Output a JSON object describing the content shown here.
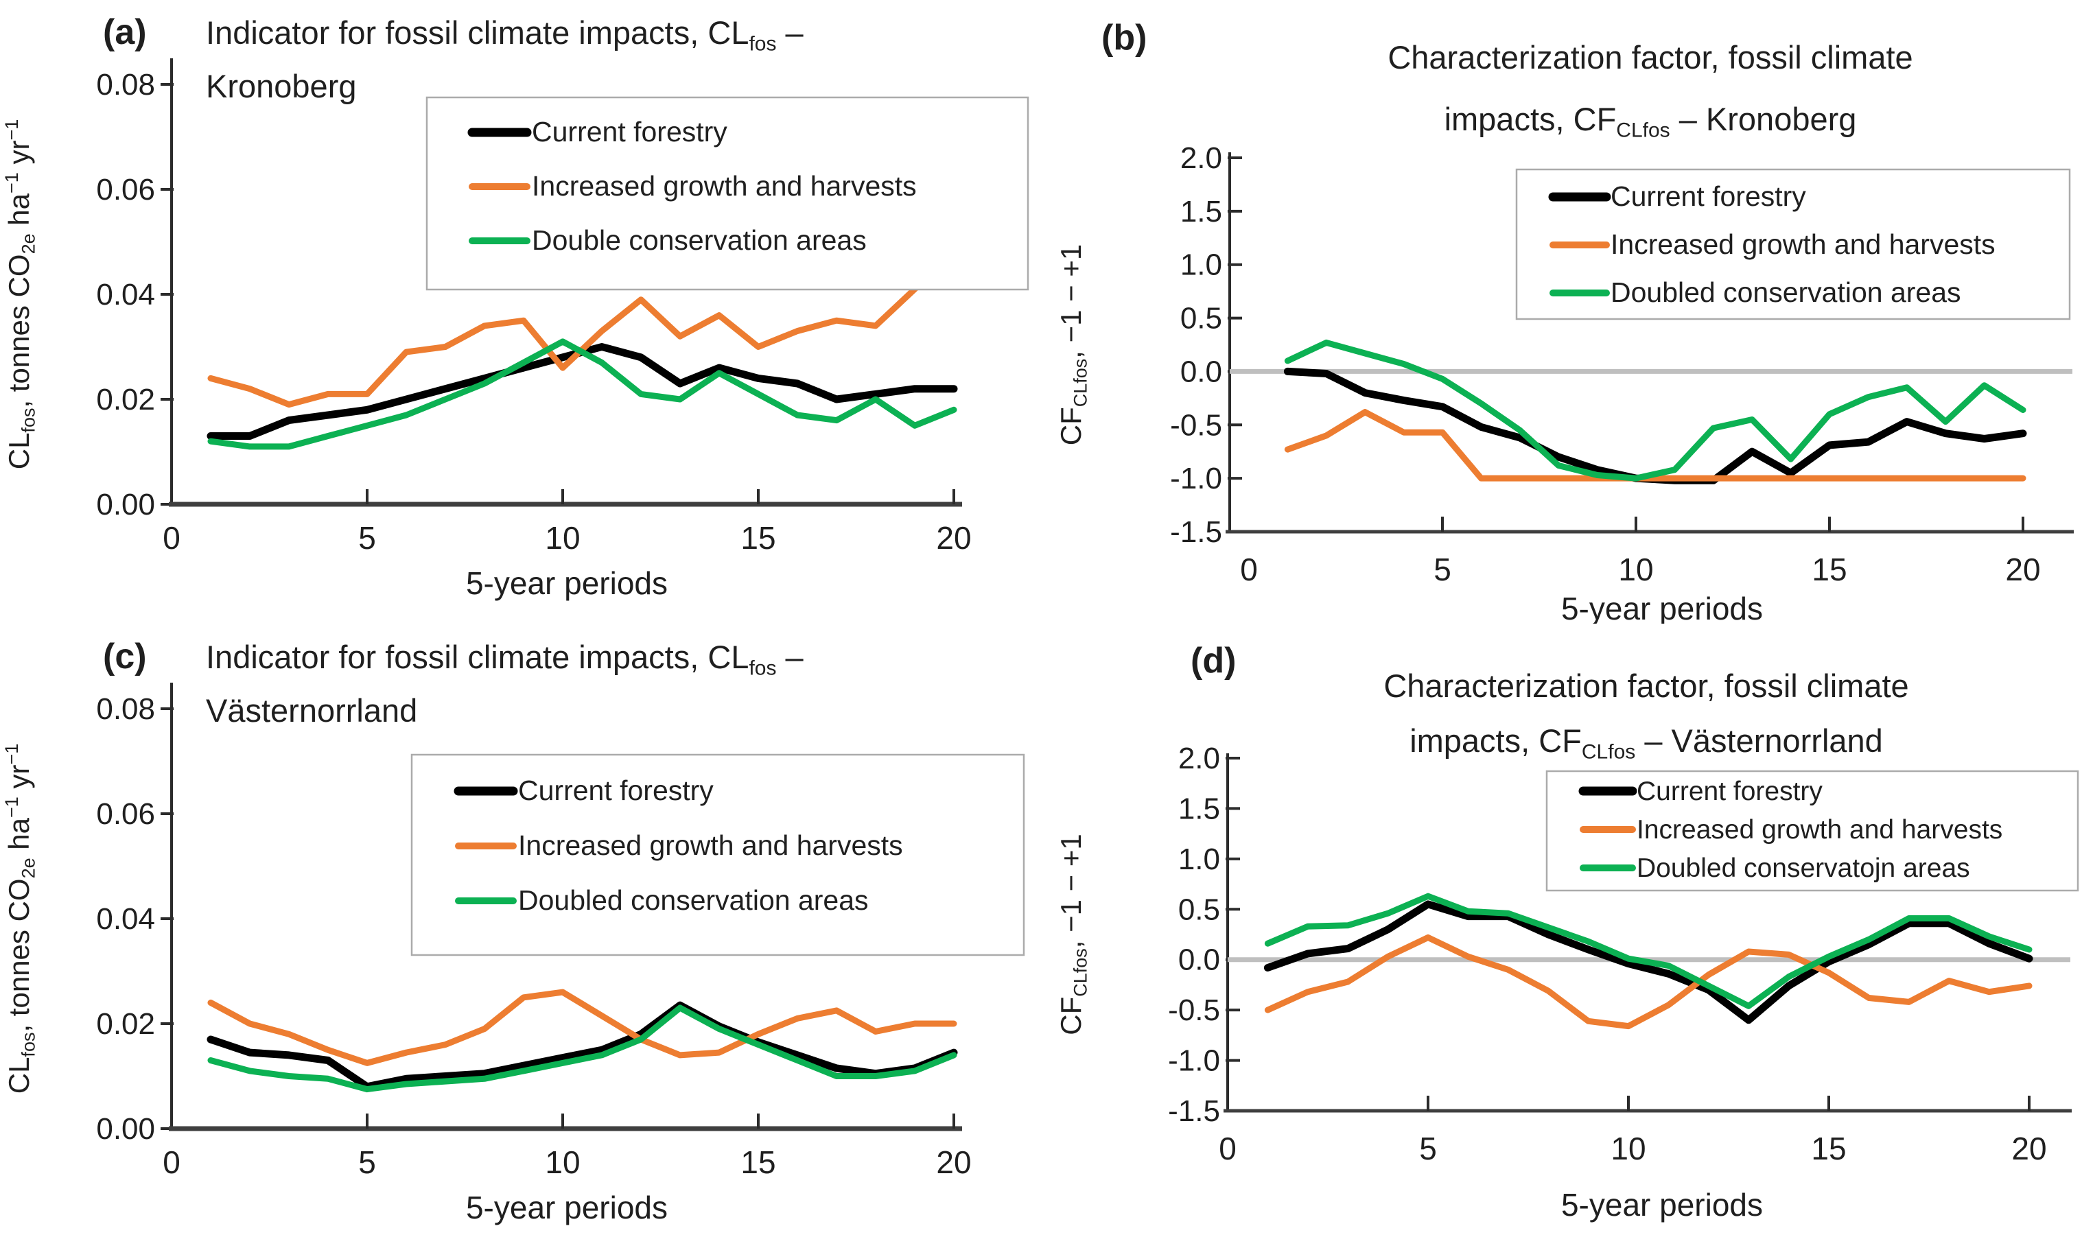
{
  "figure": {
    "background": "#FFFFFF",
    "xlabel": "5-year periods"
  },
  "colors": {
    "current": "#000000",
    "increased": "#ED7D31",
    "doubled": "#0CB153",
    "zero_line": "#BFBFBF",
    "axis": "#2B2B2B",
    "bottom_axis": "#3F3F3F",
    "text": "#1F1F1F",
    "legend_border": "#ABABAB"
  },
  "chart_data": [
    {
      "id": "a",
      "type": "line",
      "panel_label": "(a)",
      "title_lines": [
        [
          {
            "t": "Indicator for fossil climate impacts, CL"
          },
          {
            "t": "fos",
            "script": "sub"
          },
          {
            "t": " –"
          }
        ],
        [
          {
            "t": "Kronoberg"
          }
        ]
      ],
      "title_align": "left",
      "ylabel_runs": [
        {
          "t": "CL"
        },
        {
          "t": "fos",
          "script": "sub"
        },
        {
          "t": ", tonnes CO"
        },
        {
          "t": "2e",
          "script": "sub"
        },
        {
          "t": " ha"
        },
        {
          "t": "−1",
          "script": "sup"
        },
        {
          "t": " yr"
        },
        {
          "t": "−1",
          "script": "sup"
        }
      ],
      "xlabel": "5-year periods",
      "xlim": [
        0,
        21
      ],
      "xticks": [
        0,
        5,
        10,
        15,
        20
      ],
      "xtick_labels": [
        "0",
        "5",
        "10",
        "15",
        "20"
      ],
      "ylim": [
        0,
        0.08
      ],
      "yticks": [
        0,
        0.02,
        0.04,
        0.06,
        0.08
      ],
      "ytick_labels": [
        "0.00",
        "0.02",
        "0.04",
        "0.06",
        "0.08"
      ],
      "zero_line": false,
      "grid": false,
      "legend_position": "upper-right",
      "x": [
        1,
        2,
        3,
        4,
        5,
        6,
        7,
        8,
        9,
        10,
        11,
        12,
        13,
        14,
        15,
        16,
        17,
        18,
        19,
        20
      ],
      "series": [
        {
          "name": "Current forestry",
          "color_key": "current",
          "values": [
            0.013,
            0.013,
            0.016,
            0.017,
            0.018,
            0.02,
            0.022,
            0.024,
            0.026,
            0.028,
            0.03,
            0.028,
            0.023,
            0.026,
            0.024,
            0.023,
            0.02,
            0.021,
            0.022,
            0.022
          ]
        },
        {
          "name": "Increased growth and harvests",
          "color_key": "increased",
          "values": [
            0.024,
            0.022,
            0.019,
            0.021,
            0.021,
            0.029,
            0.03,
            0.034,
            0.035,
            0.026,
            0.033,
            0.039,
            0.032,
            0.036,
            0.03,
            0.033,
            0.035,
            0.034,
            0.041,
            0.048
          ]
        },
        {
          "name": "Double conservation areas",
          "color_key": "doubled",
          "values": [
            0.012,
            0.011,
            0.011,
            0.013,
            0.015,
            0.017,
            0.02,
            0.023,
            0.027,
            0.031,
            0.027,
            0.021,
            0.02,
            0.025,
            0.021,
            0.017,
            0.016,
            0.02,
            0.015,
            0.018
          ]
        }
      ]
    },
    {
      "id": "b",
      "type": "line",
      "panel_label": "(b)",
      "title_lines": [
        [
          {
            "t": "Characterization factor, fossil climate"
          }
        ],
        [
          {
            "t": "impacts, CF"
          },
          {
            "t": "CLfos",
            "script": "sub"
          },
          {
            "t": " – Kronoberg"
          }
        ]
      ],
      "title_align": "center",
      "ylabel_runs": [
        {
          "t": "CF"
        },
        {
          "t": "CLfos",
          "script": "sub"
        },
        {
          "t": ", −1 − +1"
        }
      ],
      "xlabel": "5-year periods",
      "xlim": [
        0,
        21
      ],
      "xticks": [
        0,
        5,
        10,
        15,
        20
      ],
      "xtick_labels": [
        "0",
        "5",
        "10",
        "15",
        "20"
      ],
      "ylim": [
        -1.5,
        2.0
      ],
      "yticks": [
        -1.5,
        -1.0,
        -0.5,
        0.0,
        0.5,
        1.0,
        1.5,
        2.0
      ],
      "ytick_labels": [
        "-1.5",
        "-1.0",
        "-0.5",
        "0.0",
        "0.5",
        "1.0",
        "1.5",
        "2.0"
      ],
      "zero_line": true,
      "grid": false,
      "legend_position": "upper-right",
      "x": [
        1,
        2,
        3,
        4,
        5,
        6,
        7,
        8,
        9,
        10,
        11,
        12,
        13,
        14,
        15,
        16,
        17,
        18,
        19,
        20
      ],
      "series": [
        {
          "name": "Current forestry",
          "color_key": "current",
          "values": [
            0.0,
            -0.02,
            -0.2,
            -0.27,
            -0.33,
            -0.52,
            -0.62,
            -0.8,
            -0.92,
            -1.0,
            -1.02,
            -1.02,
            -0.75,
            -0.95,
            -0.69,
            -0.66,
            -0.47,
            -0.58,
            -0.63,
            -0.58
          ]
        },
        {
          "name": "Increased growth and harvests",
          "color_key": "increased",
          "values": [
            -0.73,
            -0.6,
            -0.38,
            -0.57,
            -0.57,
            -1.0,
            -1.0,
            -1.0,
            -1.0,
            -1.0,
            -1.0,
            -1.0,
            -1.0,
            -1.0,
            -1.0,
            -1.0,
            -1.0,
            -1.0,
            -1.0,
            -1.0
          ]
        },
        {
          "name": "Doubled conservation areas",
          "color_key": "doubled",
          "values": [
            0.1,
            0.27,
            0.17,
            0.07,
            -0.07,
            -0.3,
            -0.55,
            -0.88,
            -0.97,
            -1.0,
            -0.92,
            -0.53,
            -0.45,
            -0.82,
            -0.4,
            -0.24,
            -0.15,
            -0.47,
            -0.13,
            -0.36
          ]
        }
      ]
    },
    {
      "id": "c",
      "type": "line",
      "panel_label": "(c)",
      "title_lines": [
        [
          {
            "t": "Indicator for fossil climate impacts, CL"
          },
          {
            "t": "fos",
            "script": "sub"
          },
          {
            "t": " –"
          }
        ],
        [
          {
            "t": "Västernorrland"
          }
        ]
      ],
      "title_align": "left",
      "ylabel_runs": [
        {
          "t": "CL"
        },
        {
          "t": "fos",
          "script": "sub"
        },
        {
          "t": ", tonnes CO"
        },
        {
          "t": "2e",
          "script": "sub"
        },
        {
          "t": " ha"
        },
        {
          "t": "−1",
          "script": "sup"
        },
        {
          "t": " yr"
        },
        {
          "t": "−1",
          "script": "sup"
        }
      ],
      "xlabel": "5-year periods",
      "xlim": [
        0,
        21
      ],
      "xticks": [
        0,
        5,
        10,
        15,
        20
      ],
      "xtick_labels": [
        "0",
        "5",
        "10",
        "15",
        "20"
      ],
      "ylim": [
        0,
        0.08
      ],
      "yticks": [
        0,
        0.02,
        0.04,
        0.06,
        0.08
      ],
      "ytick_labels": [
        "0.00",
        "0.02",
        "0.04",
        "0.06",
        "0.08"
      ],
      "zero_line": false,
      "grid": false,
      "legend_position": "upper-right",
      "x": [
        1,
        2,
        3,
        4,
        5,
        6,
        7,
        8,
        9,
        10,
        11,
        12,
        13,
        14,
        15,
        16,
        17,
        18,
        19,
        20
      ],
      "series": [
        {
          "name": "Current forestry",
          "color_key": "current",
          "values": [
            0.017,
            0.0145,
            0.014,
            0.013,
            0.008,
            0.0095,
            0.01,
            0.0105,
            0.012,
            0.0135,
            0.015,
            0.018,
            0.0235,
            0.0195,
            0.0165,
            0.014,
            0.0115,
            0.0105,
            0.0115,
            0.0145
          ]
        },
        {
          "name": "Increased growth and harvests",
          "color_key": "increased",
          "values": [
            0.024,
            0.02,
            0.018,
            0.015,
            0.0125,
            0.0145,
            0.016,
            0.019,
            0.025,
            0.026,
            0.0215,
            0.017,
            0.014,
            0.0145,
            0.018,
            0.021,
            0.0225,
            0.0185,
            0.02,
            0.02
          ]
        },
        {
          "name": "Doubled conservation areas",
          "color_key": "doubled",
          "values": [
            0.013,
            0.011,
            0.01,
            0.0095,
            0.0075,
            0.0085,
            0.009,
            0.0095,
            0.011,
            0.0125,
            0.014,
            0.017,
            0.023,
            0.019,
            0.016,
            0.013,
            0.01,
            0.01,
            0.011,
            0.014
          ]
        }
      ]
    },
    {
      "id": "d",
      "type": "line",
      "panel_label": "(d)",
      "title_lines": [
        [
          {
            "t": "Characterization factor, fossil climate"
          }
        ],
        [
          {
            "t": "impacts, CF"
          },
          {
            "t": "CLfos",
            "script": "sub"
          },
          {
            "t": " – Västernorrland"
          }
        ]
      ],
      "title_align": "center",
      "ylabel_runs": [
        {
          "t": "CF"
        },
        {
          "t": "CLfos",
          "script": "sub"
        },
        {
          "t": ", −1 − +1"
        }
      ],
      "xlabel": "5-year periods",
      "xlim": [
        0,
        21
      ],
      "xticks": [
        0,
        5,
        10,
        15,
        20
      ],
      "xtick_labels": [
        "0",
        "5",
        "10",
        "15",
        "20"
      ],
      "ylim": [
        -1.5,
        2.0
      ],
      "yticks": [
        -1.5,
        -1.0,
        -0.5,
        0.0,
        0.5,
        1.0,
        1.5,
        2.0
      ],
      "ytick_labels": [
        "-1.5",
        "-1.0",
        "-0.5",
        "0.0",
        "0.5",
        "1.0",
        "1.5",
        "2.0"
      ],
      "zero_line": true,
      "grid": false,
      "legend_position": "upper-right",
      "x": [
        1,
        2,
        3,
        4,
        5,
        6,
        7,
        8,
        9,
        10,
        11,
        12,
        13,
        14,
        15,
        16,
        17,
        18,
        19,
        20
      ],
      "series": [
        {
          "name": "Current forestry",
          "color_key": "current",
          "values": [
            -0.08,
            0.06,
            0.11,
            0.3,
            0.55,
            0.43,
            0.43,
            0.25,
            0.1,
            -0.04,
            -0.14,
            -0.3,
            -0.6,
            -0.26,
            -0.02,
            0.15,
            0.36,
            0.36,
            0.16,
            0.01
          ]
        },
        {
          "name": "Increased growth and harvests",
          "color_key": "increased",
          "values": [
            -0.5,
            -0.32,
            -0.22,
            0.03,
            0.22,
            0.03,
            -0.1,
            -0.31,
            -0.61,
            -0.66,
            -0.45,
            -0.15,
            0.08,
            0.05,
            -0.13,
            -0.38,
            -0.42,
            -0.21,
            -0.32,
            -0.26
          ]
        },
        {
          "name": "Doubled conservatojn areas",
          "color_key": "doubled",
          "values": [
            0.16,
            0.33,
            0.34,
            0.46,
            0.63,
            0.48,
            0.46,
            0.32,
            0.18,
            0.01,
            -0.06,
            -0.26,
            -0.46,
            -0.17,
            0.03,
            0.2,
            0.41,
            0.41,
            0.23,
            0.1
          ]
        }
      ]
    }
  ]
}
